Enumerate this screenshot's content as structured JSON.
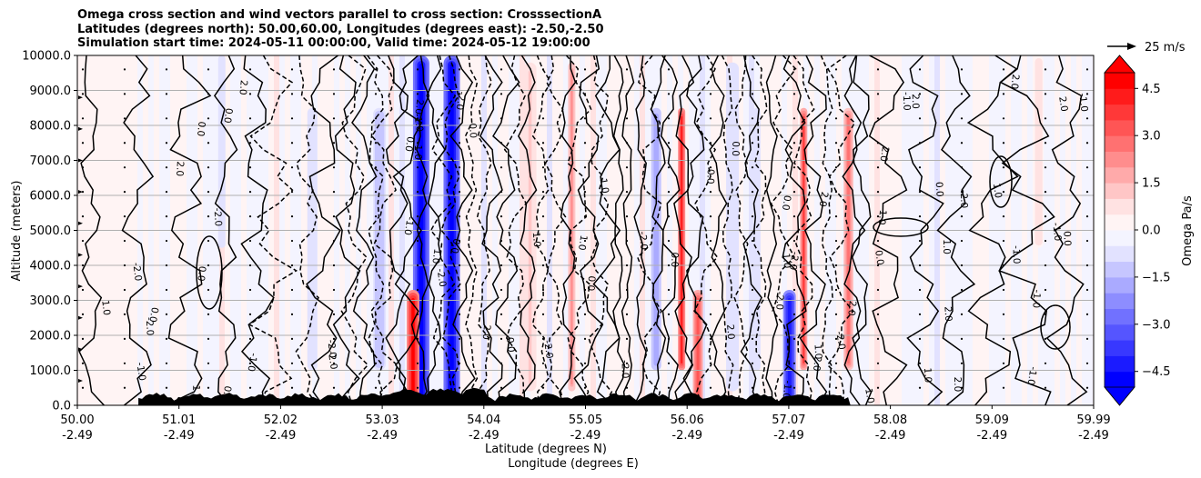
{
  "chart_data": {
    "type": "contour",
    "title_lines": [
      "Omega cross section and wind vectors parallel to cross section: CrosssectionA",
      "Latitudes (degrees north): 50.00,60.00, Longitudes (degrees east): -2.50,-2.50",
      "Simulation start time: 2024-05-11 00:00:00, Valid time: 2024-05-12 19:00:00"
    ],
    "ylabel": "Altitude (meters)",
    "xlabel_line1": "Latitude (degrees N)",
    "xlabel_line2": "Longitude (degrees E)",
    "ylim": [
      0,
      10000
    ],
    "yticks": [
      "0.0",
      "1000.0",
      "2000.0",
      "3000.0",
      "4000.0",
      "5000.0",
      "6000.0",
      "7000.0",
      "8000.0",
      "9000.0",
      "10000.0"
    ],
    "xticks": [
      {
        "lat": "50.00",
        "lon": "-2.49"
      },
      {
        "lat": "51.01",
        "lon": "-2.49"
      },
      {
        "lat": "52.02",
        "lon": "-2.49"
      },
      {
        "lat": "53.03",
        "lon": "-2.49"
      },
      {
        "lat": "54.04",
        "lon": "-2.49"
      },
      {
        "lat": "55.05",
        "lon": "-2.49"
      },
      {
        "lat": "56.06",
        "lon": "-2.49"
      },
      {
        "lat": "57.07",
        "lon": "-2.49"
      },
      {
        "lat": "58.08",
        "lon": "-2.49"
      },
      {
        "lat": "59.09",
        "lon": "-2.49"
      },
      {
        "lat": "59.99",
        "lon": "-2.49"
      }
    ],
    "colorbar": {
      "label": "Omega Pa/s",
      "range": [
        -5,
        5
      ],
      "ticks": [
        "4.5",
        "3.0",
        "1.5",
        "0.0",
        "−1.5",
        "−3.0",
        "−4.5"
      ],
      "colors": [
        "#0000ff",
        "#1b1bff",
        "#3838ff",
        "#5555ff",
        "#7171ff",
        "#8d8dff",
        "#aaaaff",
        "#c6c6ff",
        "#e2e2ff",
        "#f4f4ff",
        "#fff4f4",
        "#ffe2e2",
        "#ffc6c6",
        "#ffaaaa",
        "#ff8d8d",
        "#ff7171",
        "#ff5555",
        "#ff3838",
        "#ff1b1b",
        "#ff0000"
      ]
    },
    "quiver_key": "25 m/s",
    "contour_labels": [
      "0.0",
      "1.0",
      "-1.0",
      "2.0",
      "-2.0"
    ],
    "bands": [
      {
        "lat": 53.38,
        "value": -5.0,
        "kind": "strong"
      },
      {
        "lat": 53.68,
        "value": -5.0,
        "kind": "strong"
      },
      {
        "lat": 53.3,
        "value": 4.5,
        "kind": "low"
      },
      {
        "lat": 55.94,
        "value": 4.0,
        "kind": "mid"
      },
      {
        "lat": 56.1,
        "value": 3.0,
        "kind": "low"
      },
      {
        "lat": 57.0,
        "value": -4.5,
        "kind": "low"
      },
      {
        "lat": 57.14,
        "value": 3.5,
        "kind": "mid"
      },
      {
        "lat": 57.58,
        "value": 2.5,
        "kind": "mid"
      },
      {
        "lat": 52.97,
        "value": -1.5,
        "kind": "mid"
      },
      {
        "lat": 54.86,
        "value": 2.0,
        "kind": "full"
      },
      {
        "lat": 55.69,
        "value": -2.0,
        "kind": "mid"
      },
      {
        "lat": 56.44,
        "value": -1.0,
        "kind": "full"
      },
      {
        "lat": 51.42,
        "value": -1.0,
        "kind": "upper"
      },
      {
        "lat": 52.31,
        "value": -1.0,
        "kind": "mid"
      },
      {
        "lat": 54.45,
        "value": 1.0,
        "kind": "full"
      },
      {
        "lat": 56.68,
        "value": -1.0,
        "kind": "mid"
      },
      {
        "lat": 59.45,
        "value": 0.8,
        "kind": "upper"
      }
    ]
  }
}
